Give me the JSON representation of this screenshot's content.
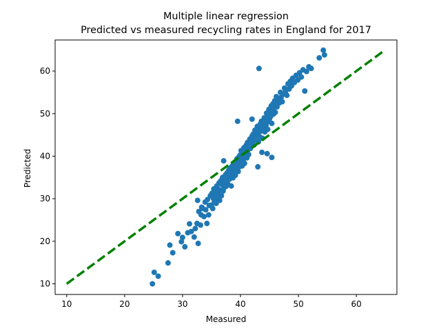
{
  "chart_data": {
    "type": "scatter",
    "title": "Multiple linear regression",
    "subtitle": "Predicted vs measured recycling rates in England for 2017",
    "xlabel": "Measured",
    "ylabel": "Predicted",
    "xlim": [
      8,
      67
    ],
    "ylim": [
      7.5,
      67.3
    ],
    "x_ticks": [
      10,
      20,
      30,
      40,
      50,
      60
    ],
    "y_ticks": [
      10,
      20,
      30,
      40,
      50,
      60
    ],
    "x_tick_labels": [
      "10",
      "20",
      "30",
      "40",
      "50",
      "60"
    ],
    "y_tick_labels": [
      "10",
      "20",
      "30",
      "40",
      "50",
      "60"
    ],
    "grid": false,
    "marker_color": "#1f77b4",
    "reference_line": {
      "style": "dashed",
      "color": "#008000",
      "from": [
        10,
        10
      ],
      "to": [
        65,
        65
      ]
    },
    "series": [
      {
        "points": [
          [
            24.8,
            10.0
          ],
          [
            25.1,
            12.7
          ],
          [
            25.8,
            11.8
          ],
          [
            27.5,
            14.9
          ],
          [
            27.8,
            19.1
          ],
          [
            28.3,
            17.3
          ],
          [
            29.2,
            21.8
          ],
          [
            29.8,
            19.9
          ],
          [
            30.0,
            20.9
          ],
          [
            30.4,
            18.7
          ],
          [
            30.9,
            22.0
          ],
          [
            31.2,
            24.1
          ],
          [
            31.5,
            22.3
          ],
          [
            32.0,
            21.0
          ],
          [
            32.2,
            23.0
          ],
          [
            32.5,
            24.2
          ],
          [
            32.6,
            29.6
          ],
          [
            32.8,
            27.0
          ],
          [
            32.7,
            19.5
          ],
          [
            33.1,
            23.8
          ],
          [
            33.2,
            26.2
          ],
          [
            33.3,
            28.0
          ],
          [
            33.5,
            27.7
          ],
          [
            33.7,
            25.8
          ],
          [
            33.9,
            29.2
          ],
          [
            34.0,
            27.4
          ],
          [
            34.2,
            24.2
          ],
          [
            34.3,
            29.8
          ],
          [
            34.5,
            26.2
          ],
          [
            34.6,
            28.4
          ],
          [
            34.8,
            30.7
          ],
          [
            35.0,
            28.5
          ],
          [
            35.1,
            31.3
          ],
          [
            35.2,
            27.7
          ],
          [
            35.3,
            30.1
          ],
          [
            35.4,
            32.3
          ],
          [
            35.5,
            29.4
          ],
          [
            35.6,
            30.8
          ],
          [
            35.7,
            31.9
          ],
          [
            35.8,
            28.9
          ],
          [
            35.9,
            33.0
          ],
          [
            36.0,
            30.0
          ],
          [
            36.1,
            32.3
          ],
          [
            36.2,
            31.0
          ],
          [
            36.3,
            33.7
          ],
          [
            36.4,
            29.6
          ],
          [
            36.5,
            32.0
          ],
          [
            36.6,
            34.2
          ],
          [
            36.7,
            30.7
          ],
          [
            36.8,
            33.3
          ],
          [
            36.9,
            35.0
          ],
          [
            37.0,
            31.8
          ],
          [
            37.1,
            34.5
          ],
          [
            37.2,
            32.6
          ],
          [
            37.3,
            33.9
          ],
          [
            37.1,
            38.9
          ],
          [
            37.4,
            35.6
          ],
          [
            37.5,
            32.9
          ],
          [
            37.6,
            34.8
          ],
          [
            37.7,
            36.1
          ],
          [
            37.8,
            33.5
          ],
          [
            37.9,
            35.3
          ],
          [
            38.0,
            36.8
          ],
          [
            38.1,
            34.6
          ],
          [
            38.2,
            37.2
          ],
          [
            38.3,
            35.9
          ],
          [
            38.4,
            33.0
          ],
          [
            38.5,
            37.6
          ],
          [
            38.6,
            36.3
          ],
          [
            38.7,
            34.9
          ],
          [
            38.8,
            38.2
          ],
          [
            38.9,
            36.7
          ],
          [
            39.0,
            37.9
          ],
          [
            39.1,
            35.5
          ],
          [
            39.2,
            38.8
          ],
          [
            39.3,
            37.0
          ],
          [
            39.4,
            39.4
          ],
          [
            39.5,
            38.1
          ],
          [
            39.6,
            36.4
          ],
          [
            39.7,
            39.8
          ],
          [
            39.8,
            37.5
          ],
          [
            39.9,
            40.2
          ],
          [
            40.0,
            38.6
          ],
          [
            40.1,
            41.3
          ],
          [
            40.2,
            39.0
          ],
          [
            40.3,
            37.7
          ],
          [
            40.4,
            40.6
          ],
          [
            40.5,
            39.3
          ],
          [
            40.6,
            42.0
          ],
          [
            40.7,
            38.3
          ],
          [
            40.8,
            41.1
          ],
          [
            40.9,
            40.0
          ],
          [
            41.0,
            42.6
          ],
          [
            41.1,
            39.6
          ],
          [
            41.2,
            43.2
          ],
          [
            41.3,
            41.5
          ],
          [
            41.4,
            40.4
          ],
          [
            41.5,
            42.9
          ],
          [
            41.6,
            44.0
          ],
          [
            41.7,
            41.8
          ],
          [
            41.8,
            43.5
          ],
          [
            41.9,
            42.3
          ],
          [
            42.0,
            44.7
          ],
          [
            42.1,
            43.0
          ],
          [
            42.2,
            45.2
          ],
          [
            42.3,
            42.6
          ],
          [
            42.4,
            44.3
          ],
          [
            42.5,
            46.1
          ],
          [
            42.6,
            43.8
          ],
          [
            42.7,
            45.6
          ],
          [
            42.8,
            44.9
          ],
          [
            42.9,
            47.0
          ],
          [
            43.0,
            45.3
          ],
          [
            43.1,
            43.4
          ],
          [
            43.2,
            46.6
          ],
          [
            43.3,
            44.6
          ],
          [
            43.4,
            47.5
          ],
          [
            43.5,
            45.9
          ],
          [
            43.6,
            48.2
          ],
          [
            43.7,
            46.4
          ],
          [
            43.8,
            44.2
          ],
          [
            43.9,
            47.9
          ],
          [
            44.0,
            46.9
          ],
          [
            44.1,
            49.0
          ],
          [
            44.2,
            45.7
          ],
          [
            44.3,
            48.6
          ],
          [
            44.4,
            47.2
          ],
          [
            44.5,
            50.1
          ],
          [
            44.6,
            48.0
          ],
          [
            44.7,
            46.3
          ],
          [
            44.8,
            49.5
          ],
          [
            44.9,
            51.0
          ],
          [
            45.0,
            48.8
          ],
          [
            45.1,
            50.5
          ],
          [
            45.2,
            49.3
          ],
          [
            45.3,
            51.8
          ],
          [
            45.4,
            47.7
          ],
          [
            45.5,
            50.8
          ],
          [
            45.6,
            52.3
          ],
          [
            45.7,
            49.9
          ],
          [
            45.8,
            51.4
          ],
          [
            45.9,
            53.0
          ],
          [
            46.0,
            50.3
          ],
          [
            46.1,
            52.0
          ],
          [
            46.2,
            54.0
          ],
          [
            46.3,
            51.6
          ],
          [
            46.5,
            53.3
          ],
          [
            46.7,
            52.5
          ],
          [
            46.9,
            55.0
          ],
          [
            47.0,
            53.8
          ],
          [
            47.2,
            52.8
          ],
          [
            47.4,
            54.6
          ],
          [
            47.6,
            56.0
          ],
          [
            47.8,
            55.3
          ],
          [
            48.0,
            54.3
          ],
          [
            48.2,
            57.0
          ],
          [
            48.4,
            55.8
          ],
          [
            48.6,
            57.6
          ],
          [
            48.8,
            56.5
          ],
          [
            49.0,
            58.3
          ],
          [
            49.3,
            57.3
          ],
          [
            49.6,
            59.0
          ],
          [
            49.9,
            57.9
          ],
          [
            50.2,
            59.6
          ],
          [
            50.5,
            58.6
          ],
          [
            50.8,
            60.3
          ],
          [
            51.1,
            55.3
          ],
          [
            51.4,
            59.9
          ],
          [
            51.8,
            61.0
          ],
          [
            52.2,
            60.6
          ],
          [
            53.6,
            63.1
          ],
          [
            54.3,
            64.9
          ],
          [
            54.5,
            63.8
          ],
          [
            43.2,
            60.6
          ],
          [
            39.5,
            48.2
          ],
          [
            42.0,
            48.7
          ],
          [
            43.0,
            37.5
          ],
          [
            44.6,
            40.6
          ],
          [
            45.4,
            39.7
          ],
          [
            43.7,
            40.9
          ]
        ]
      }
    ]
  }
}
